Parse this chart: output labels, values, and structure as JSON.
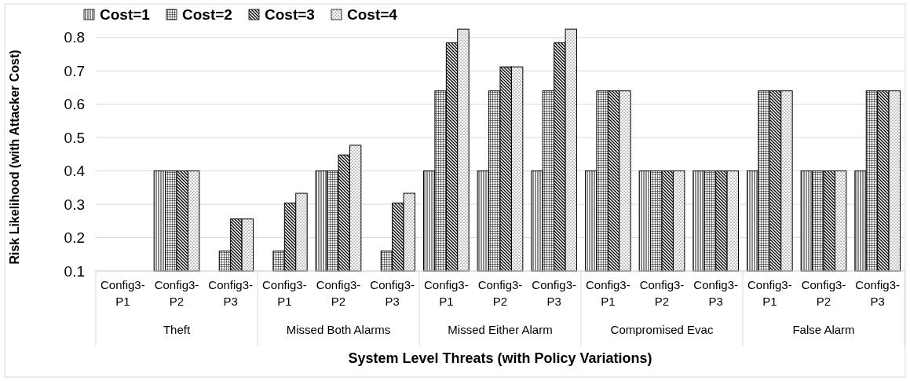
{
  "chart_data": {
    "type": "bar",
    "xlabel": "System Level Threats (with Policy Variations)",
    "ylabel": "Risk Likelihood (with Attacker Cost)",
    "categories": [
      "Config3-P1",
      "Config3-P2",
      "Config3-P3",
      "Config3-P1",
      "Config3-P2",
      "Config3-P3",
      "Config3-P1",
      "Config3-P2",
      "Config3-P3",
      "Config3-P1",
      "Config3-P2",
      "Config3-P3",
      "Config3-P1",
      "Config3-P2",
      "Config3-P3"
    ],
    "annotations": [
      "Theft",
      "Missed Both Alarms",
      "Missed Either Alarm",
      "Compromised Evac",
      "False Alarm"
    ],
    "series": [
      {
        "name": "Cost=1",
        "color": "#000000",
        "values": [
          0.1,
          0.4,
          0.1,
          0.1,
          0.4,
          0.1,
          0.4,
          0.4,
          0.4,
          0.4,
          0.4,
          0.4,
          0.4,
          0.4,
          0.4
        ]
      },
      {
        "name": "Cost=2",
        "color": "#000000",
        "values": [
          0.1,
          0.4,
          0.16,
          0.16,
          0.4,
          0.16,
          0.64,
          0.64,
          0.64,
          0.64,
          0.4,
          0.4,
          0.64,
          0.4,
          0.64
        ]
      },
      {
        "name": "Cost=3",
        "color": "#000000",
        "values": [
          0.1,
          0.4,
          0.256,
          0.304,
          0.448,
          0.304,
          0.784,
          0.712,
          0.784,
          0.64,
          0.4,
          0.4,
          0.64,
          0.4,
          0.64
        ]
      },
      {
        "name": "Cost=4",
        "color": "#000000",
        "values": [
          0.1,
          0.4,
          0.256,
          0.333,
          0.477,
          0.333,
          0.825,
          0.712,
          0.825,
          0.64,
          0.4,
          0.4,
          0.64,
          0.4,
          0.64
        ]
      }
    ],
    "ylim": [
      0.1,
      0.83
    ],
    "yticks": [
      0.1,
      0.2,
      0.3,
      0.4,
      0.5,
      0.6,
      0.7,
      0.8
    ],
    "grid": "y",
    "legend": "top left"
  }
}
